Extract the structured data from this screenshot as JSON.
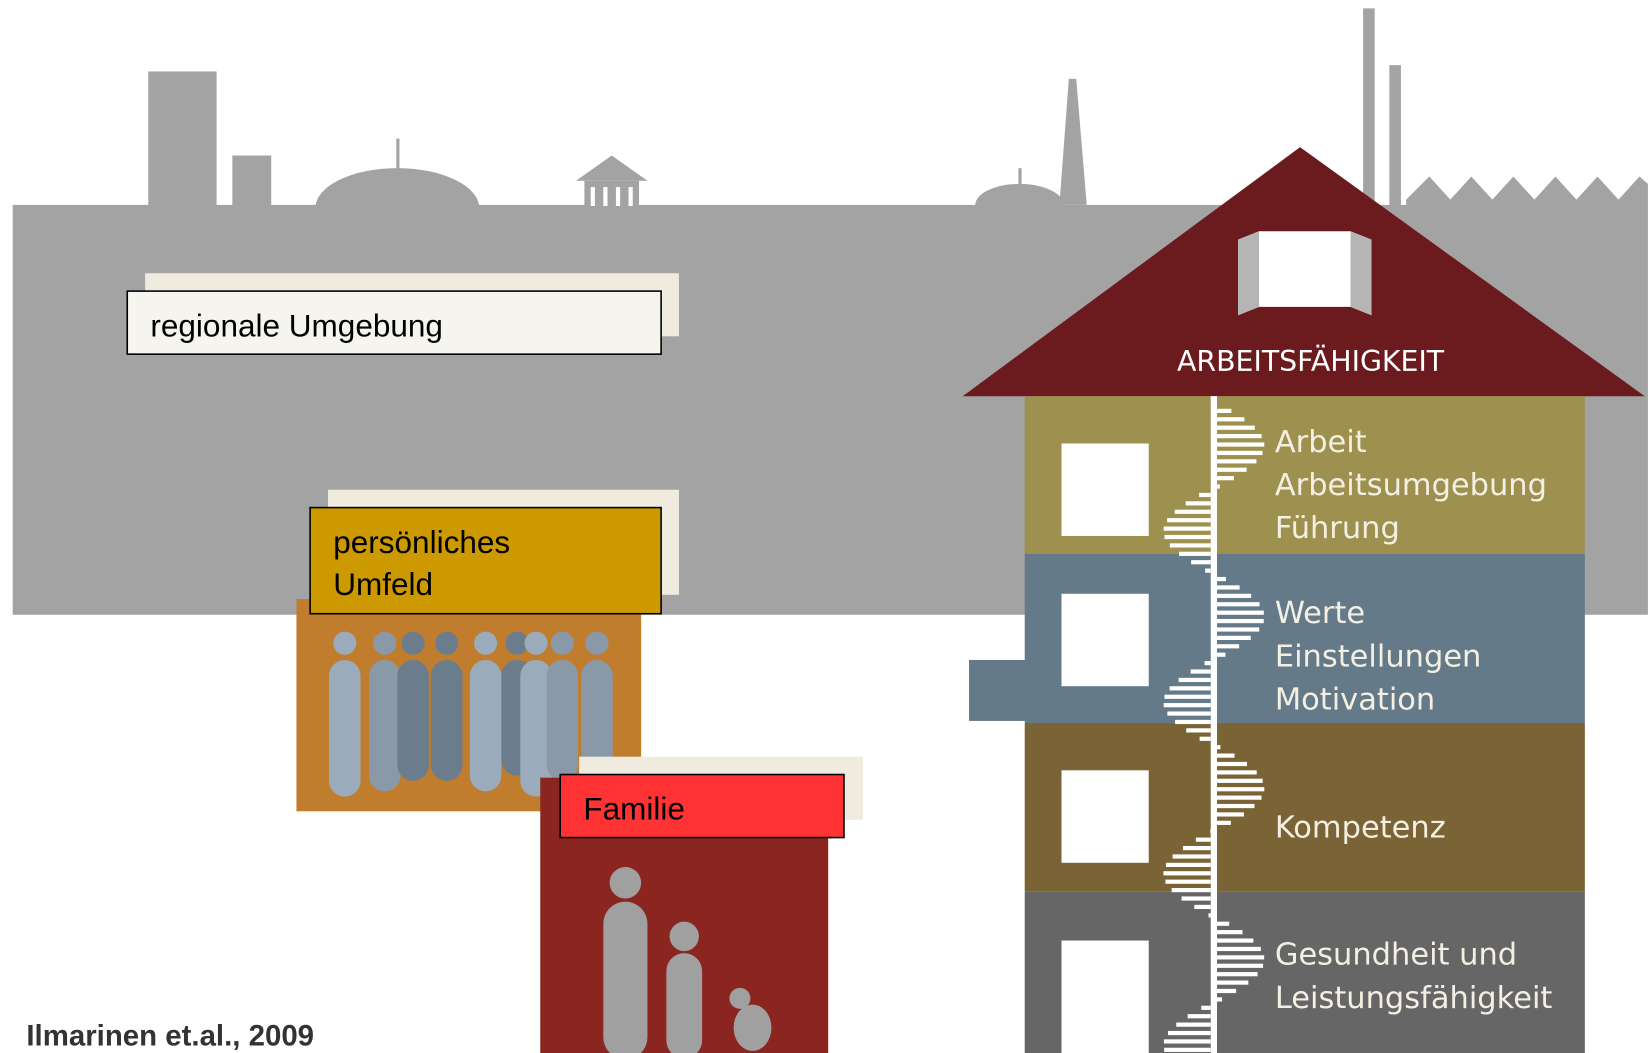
{
  "regional": {
    "label": "regionale Umgebung"
  },
  "personal": {
    "lines": [
      "persönliches",
      "Umfeld"
    ]
  },
  "family": {
    "label": "Familie"
  },
  "house": {
    "roof": "ARBEITSFÄHIGKEIT",
    "floors": [
      {
        "lines": [
          "Arbeit",
          "Arbeitsumgebung",
          "Führung"
        ]
      },
      {
        "lines": [
          "Werte",
          "Einstellungen",
          "Motivation"
        ]
      },
      {
        "lines": [
          "Kompetenz"
        ]
      },
      {
        "lines": [
          "Gesundheit und",
          "Leistungsfähigkeit"
        ]
      }
    ]
  },
  "citation": "Ilmarinen et.al., 2009"
}
